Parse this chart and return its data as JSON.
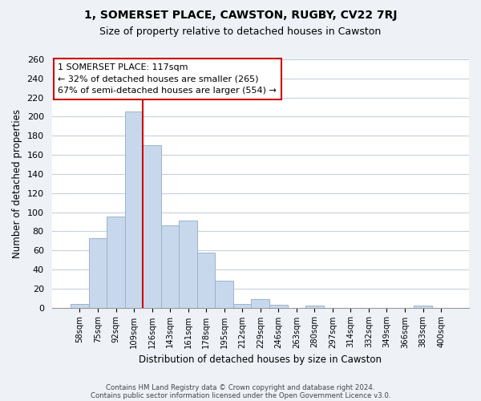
{
  "title": "1, SOMERSET PLACE, CAWSTON, RUGBY, CV22 7RJ",
  "subtitle": "Size of property relative to detached houses in Cawston",
  "xlabel": "Distribution of detached houses by size in Cawston",
  "ylabel": "Number of detached properties",
  "bar_labels": [
    "58sqm",
    "75sqm",
    "92sqm",
    "109sqm",
    "126sqm",
    "143sqm",
    "161sqm",
    "178sqm",
    "195sqm",
    "212sqm",
    "229sqm",
    "246sqm",
    "263sqm",
    "280sqm",
    "297sqm",
    "314sqm",
    "332sqm",
    "349sqm",
    "366sqm",
    "383sqm",
    "400sqm"
  ],
  "bar_heights": [
    4,
    73,
    95,
    205,
    170,
    86,
    91,
    58,
    28,
    4,
    9,
    3,
    0,
    2,
    0,
    0,
    0,
    0,
    0,
    2,
    0
  ],
  "bar_color": "#c8d8ec",
  "bar_edge_color": "#9ab4cc",
  "vline_color": "#cc0000",
  "vline_index": 3.5,
  "annotation_title": "1 SOMERSET PLACE: 117sqm",
  "annotation_line1": "← 32% of detached houses are smaller (265)",
  "annotation_line2": "67% of semi-detached houses are larger (554) →",
  "ylim": [
    0,
    260
  ],
  "yticks": [
    0,
    20,
    40,
    60,
    80,
    100,
    120,
    140,
    160,
    180,
    200,
    220,
    240,
    260
  ],
  "footer1": "Contains HM Land Registry data © Crown copyright and database right 2024.",
  "footer2": "Contains public sector information licensed under the Open Government Licence v3.0.",
  "background_color": "#eef2f7",
  "plot_background": "#ffffff",
  "grid_color": "#c8d0dc"
}
